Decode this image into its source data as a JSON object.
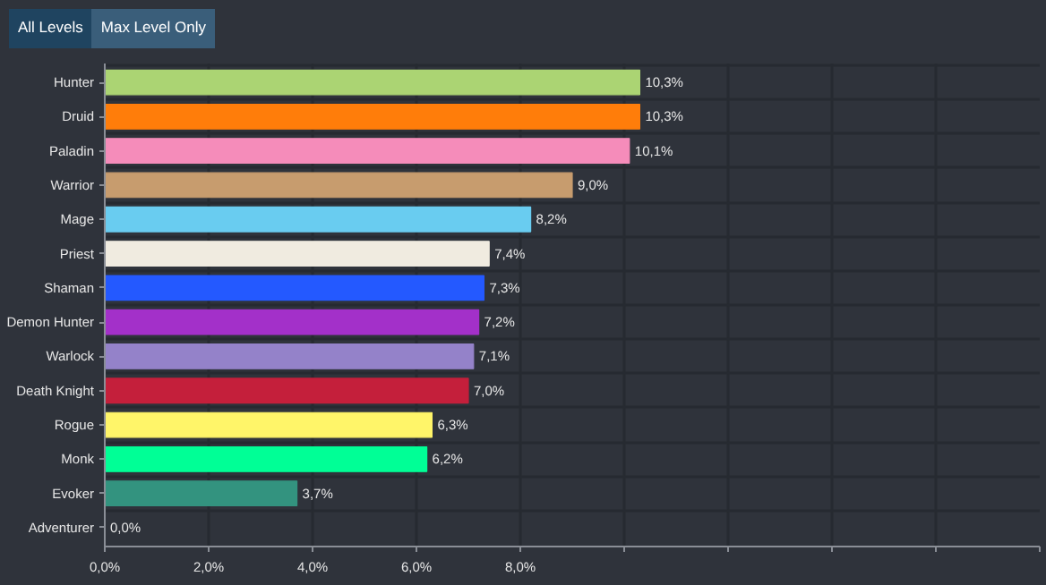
{
  "chart_data": {
    "type": "bar",
    "orientation": "horizontal",
    "categories": [
      "Hunter",
      "Druid",
      "Paladin",
      "Warrior",
      "Mage",
      "Priest",
      "Shaman",
      "Demon Hunter",
      "Warlock",
      "Death Knight",
      "Rogue",
      "Monk",
      "Evoker",
      "Adventurer"
    ],
    "values": [
      10.3,
      10.3,
      10.1,
      9.0,
      8.2,
      7.4,
      7.3,
      7.2,
      7.1,
      7.0,
      6.3,
      6.2,
      3.7,
      0.0
    ],
    "colors": [
      "#abd473",
      "#ff7d0a",
      "#f58cba",
      "#c79c6e",
      "#69ccf0",
      "#f0ebe0",
      "#2459ff",
      "#a330c9",
      "#9482c9",
      "#c41f3b",
      "#fff569",
      "#00ff96",
      "#33937f",
      "#888888"
    ],
    "value_labels": [
      "10,3%",
      "10,3%",
      "10,1%",
      "9,0%",
      "8,2%",
      "7,4%",
      "7,3%",
      "7,2%",
      "7,1%",
      "7,0%",
      "6,3%",
      "6,2%",
      "3,7%",
      "0,0%"
    ],
    "xlim": [
      0,
      18
    ],
    "xticks": [
      {
        "value": 0,
        "label": "0,0%"
      },
      {
        "value": 2,
        "label": "2,0%"
      },
      {
        "value": 4,
        "label": "4,0%"
      },
      {
        "value": 6,
        "label": "6,0%"
      },
      {
        "value": 8,
        "label": "8,0%"
      },
      {
        "value": 10,
        "label": null
      },
      {
        "value": 12,
        "label": null
      },
      {
        "value": 14,
        "label": null
      },
      {
        "value": 16,
        "label": null
      },
      {
        "value": 18,
        "label": null
      }
    ],
    "grid": true,
    "annotations": [
      "All Levels",
      "Max Level Only"
    ]
  }
}
